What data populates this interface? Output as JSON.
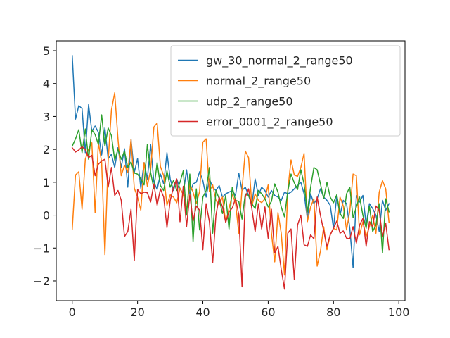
{
  "chart_data": {
    "type": "line",
    "title": "",
    "xlabel": "",
    "ylabel": "",
    "xlim": [
      -4.9,
      101.9
    ],
    "ylim": [
      -2.6,
      5.3
    ],
    "x_ticks": [
      0,
      20,
      40,
      60,
      80,
      100
    ],
    "y_ticks": [
      -2,
      -1,
      0,
      1,
      2,
      3,
      4,
      5
    ],
    "x_tick_labels": [
      "0",
      "20",
      "40",
      "60",
      "80",
      "100"
    ],
    "y_tick_labels": [
      "−2",
      "−1",
      "0",
      "1",
      "2",
      "3",
      "4",
      "5"
    ],
    "grid": false,
    "legend_position": "top-right",
    "series": [
      {
        "name": "gw_30_normal_2_range50",
        "color": "#1f77b4",
        "values": [
          4.85,
          2.92,
          3.33,
          3.24,
          1.9,
          3.36,
          2.55,
          2.71,
          2.52,
          1.83,
          2.65,
          1.72,
          1.85,
          1.45,
          2.05,
          1.45,
          2.02,
          0.85,
          2.3,
          1.3,
          1.72,
          0.82,
          1.6,
          1.1,
          2.15,
          1.0,
          0.78,
          1.25,
          0.95,
          1.9,
          1.1,
          0.75,
          1.1,
          0.8,
          0.65,
          1.38,
          0.65,
          0.95,
          1.0,
          1.32,
          1.05,
          0.55,
          1.1,
          0.85,
          0.75,
          0.9,
          0.55,
          0.65,
          0.7,
          0.75,
          0.6,
          1.28,
          0.75,
          0.85,
          0.6,
          0.3,
          1.1,
          0.6,
          0.85,
          0.75,
          0.55,
          0.75,
          0.6,
          0.55,
          0.45,
          0.7,
          0.65,
          0.7,
          0.8,
          0.9,
          1.0,
          0.65,
          -0.1,
          0.65,
          0.35,
          0.5,
          0.8,
          0.55,
          0.45,
          0.3,
          -0.4,
          0.6,
          0.0,
          0.45,
          0.35,
          -0.4,
          -1.6,
          0.6,
          0.4,
          0.6,
          -0.3,
          0.35,
          0.2,
          0.0,
          -0.5,
          0.45,
          0.15,
          0.35
        ]
      },
      {
        "name": "normal_2_range50",
        "color": "#ff7f0e",
        "values": [
          -0.42,
          1.22,
          1.32,
          0.18,
          1.7,
          2.0,
          2.2,
          0.08,
          2.2,
          1.62,
          -1.2,
          1.66,
          3.2,
          3.72,
          2.32,
          1.2,
          1.52,
          1.3,
          2.3,
          0.82,
          0.55,
          0.15,
          1.6,
          0.88,
          1.38,
          2.68,
          2.8,
          1.48,
          1.2,
          0.3,
          0.62,
          0.55,
          0.38,
          0.82,
          0.62,
          0.18,
          0.95,
          0.7,
          0.35,
          0.72,
          2.22,
          2.32,
          0.72,
          0.92,
          0.45,
          0.32,
          0.55,
          -0.22,
          0.2,
          0.62,
          0.38,
          -0.55,
          0.8,
          1.95,
          1.75,
          0.28,
          0.65,
          0.45,
          0.38,
          0.5,
          0.92,
          -0.55,
          -1.42,
          0.08,
          -0.55,
          -1.82,
          0.75,
          1.68,
          1.22,
          1.18,
          1.45,
          1.88,
          -0.2,
          0.25,
          0.5,
          -1.55,
          -1.1,
          -0.35,
          -1.05,
          -0.6,
          -0.4,
          -0.45,
          0.55,
          0.28,
          -0.45,
          0.12,
          1.25,
          1.2,
          -0.6,
          -0.2,
          -0.65,
          -0.35,
          0.0,
          -0.55,
          0.7,
          1.05,
          0.8,
          -0.22
        ]
      },
      {
        "name": "udp_2_range50",
        "color": "#2ca02c",
        "values": [
          2.1,
          2.32,
          2.6,
          1.9,
          2.62,
          1.7,
          2.6,
          2.45,
          2.15,
          3.05,
          2.1,
          2.65,
          2.42,
          1.68,
          2.0,
          1.7,
          1.95,
          1.45,
          1.62,
          1.28,
          1.25,
          1.1,
          0.92,
          2.15,
          1.3,
          0.8,
          1.6,
          0.9,
          0.75,
          1.35,
          0.85,
          1.05,
          0.75,
          1.0,
          1.35,
          0.0,
          1.25,
          -0.8,
          0.8,
          -0.45,
          0.55,
          0.75,
          1.45,
          -0.55,
          0.75,
          0.5,
          0.05,
          0.6,
          -0.42,
          0.85,
          0.45,
          0.42,
          -0.12,
          0.65,
          0.6,
          0.35,
          0.2,
          0.75,
          0.65,
          0.5,
          0.25,
          0.42,
          0.95,
          0.7,
          0.25,
          -0.05,
          0.72,
          1.25,
          0.98,
          0.78,
          1.38,
          0.95,
          0.1,
          0.85,
          1.45,
          1.38,
          0.95,
          0.5,
          1.0,
          0.55,
          0.38,
          0.62,
          0.05,
          -0.1,
          0.65,
          0.85,
          -0.08,
          0.25,
          0.55,
          0.0,
          -0.4,
          0.28,
          -0.5,
          -0.3,
          0.35,
          -1.15,
          0.5,
          0.1
        ]
      },
      {
        "name": "error_0001_2_range50",
        "color": "#d62728",
        "values": [
          2.05,
          1.92,
          1.98,
          2.08,
          2.0,
          1.75,
          1.82,
          1.2,
          1.55,
          1.65,
          1.7,
          0.85,
          1.45,
          0.6,
          0.75,
          0.45,
          -0.65,
          -0.5,
          0.18,
          -1.38,
          0.78,
          0.65,
          0.7,
          0.68,
          0.4,
          0.95,
          0.3,
          0.8,
          0.55,
          -0.38,
          0.45,
          0.85,
          1.1,
          -0.2,
          0.88,
          -0.35,
          0.62,
          -0.18,
          0.28,
          0.15,
          -1.05,
          0.35,
          -0.2,
          -1.45,
          0.0,
          0.55,
          0.25,
          -0.22,
          0.1,
          0.22,
          0.5,
          0.02,
          -2.18,
          0.55,
          0.8,
          0.2,
          -0.5,
          0.35,
          -0.42,
          0.25,
          -0.7,
          0.18,
          -1.15,
          -0.95,
          -1.65,
          -2.25,
          -0.55,
          -0.42,
          -1.95,
          -0.3,
          0.0,
          -0.9,
          -0.95,
          -0.6,
          -0.72,
          0.55,
          0.0,
          -0.48,
          -0.95,
          -0.6,
          -0.4,
          -0.18,
          -0.55,
          -0.48,
          -0.7,
          -0.72,
          -0.35,
          -0.85,
          -0.3,
          -0.1,
          -0.95,
          -0.2,
          -0.35,
          0.28,
          0.15,
          -0.65,
          -0.25,
          -1.05
        ]
      }
    ]
  }
}
